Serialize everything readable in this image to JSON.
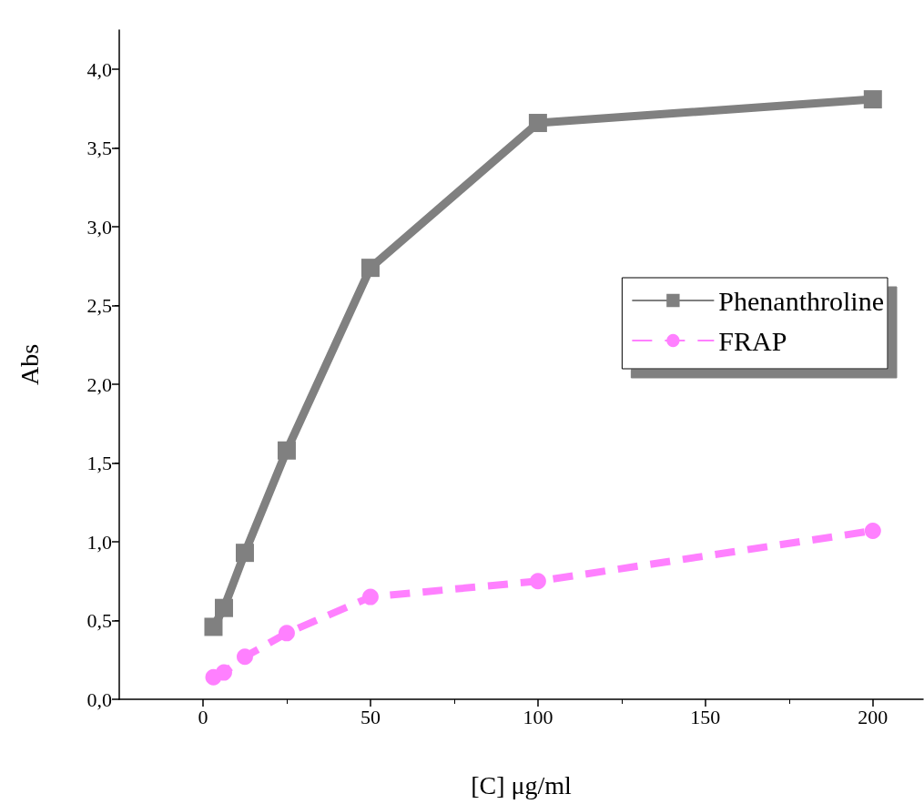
{
  "chart_data": {
    "type": "line",
    "xlabel": "[C] μg/ml",
    "ylabel": "Abs",
    "x": [
      3.125,
      6.25,
      12.5,
      25,
      50,
      100,
      200
    ],
    "series": [
      {
        "name": "Phenanthroline",
        "color": "#808080",
        "marker": "square",
        "line_style": "solid",
        "values": [
          0.46,
          0.58,
          0.93,
          1.58,
          2.74,
          3.66,
          3.81
        ]
      },
      {
        "name": "FRAP",
        "color": "#ff80ff",
        "marker": "circle",
        "line_style": "dashed",
        "values": [
          0.14,
          0.17,
          0.27,
          0.42,
          0.65,
          0.75,
          1.07
        ]
      }
    ],
    "xlim": [
      -25,
      215
    ],
    "xticks": [
      0,
      50,
      100,
      150,
      200
    ],
    "ylim": [
      0,
      4.25
    ],
    "yticks": [
      {
        "value": 0,
        "label": "0,0"
      },
      {
        "value": 0.5,
        "label": "0,5"
      },
      {
        "value": 1,
        "label": "1,0"
      },
      {
        "value": 1.5,
        "label": "1,5"
      },
      {
        "value": 2,
        "label": "2,0"
      },
      {
        "value": 2.5,
        "label": "2,5"
      },
      {
        "value": 3,
        "label": "3,0"
      },
      {
        "value": 3.5,
        "label": "3,5"
      },
      {
        "value": 4,
        "label": "4,0"
      }
    ],
    "grid": false,
    "legend": "right"
  }
}
